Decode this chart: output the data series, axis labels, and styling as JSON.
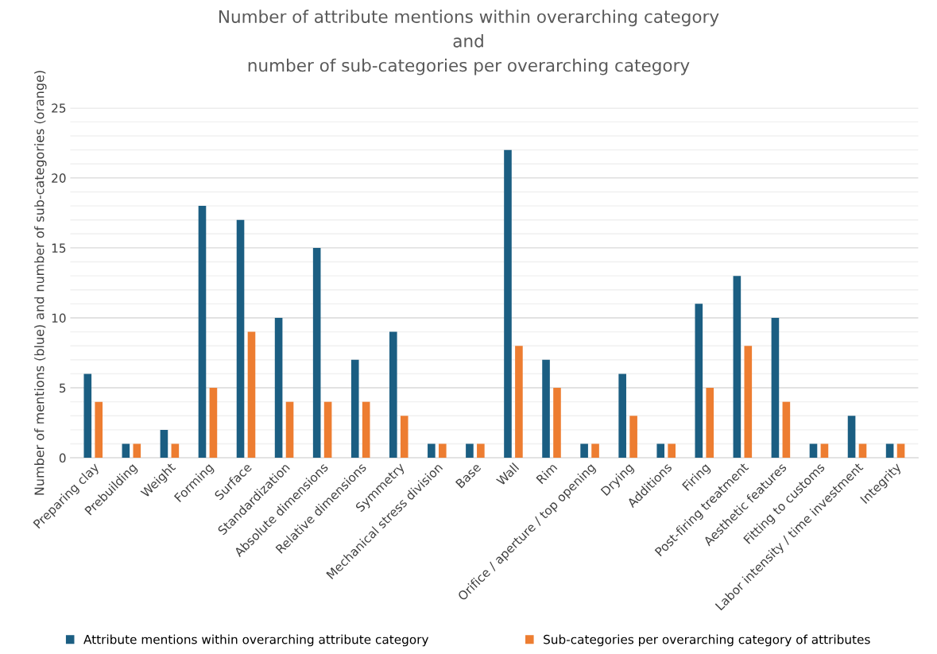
{
  "chart_data": {
    "type": "bar",
    "title": "Number of attribute mentions within overarching category\nand\nnumber of sub-categories per overarching category",
    "ylabel": "Number of mentions (blue) and number of sub-categories (orange)",
    "categories": [
      "Preparing clay",
      "Prebuilding",
      "Weight",
      "Forming",
      "Surface",
      "Standardization",
      "Absolute dimensions",
      "Relative dimensions",
      "Symmetry",
      "Mechanical stress division",
      "Base",
      "Wall",
      "Rim",
      "Orifice / aperture / top opening",
      "Drying",
      "Additions",
      "Firing",
      "Post-firing treatment",
      "Aesthetic features",
      "Fitting to customs",
      "Labor intensity / time investment",
      "Integrity"
    ],
    "series": [
      {
        "name": "Attribute mentions within overarching attribute category",
        "color": "#1b5e82",
        "values": [
          6,
          1,
          2,
          18,
          17,
          10,
          15,
          7,
          9,
          1,
          1,
          22,
          7,
          1,
          6,
          1,
          11,
          13,
          10,
          1,
          3,
          1
        ]
      },
      {
        "name": "Sub-categories per overarching category of attributes",
        "color": "#ed7d31",
        "values": [
          4,
          1,
          1,
          5,
          9,
          4,
          4,
          4,
          3,
          1,
          1,
          8,
          5,
          1,
          3,
          1,
          5,
          8,
          4,
          1,
          1,
          1
        ]
      }
    ],
    "ylim": [
      0,
      25
    ],
    "yticks": [
      0,
      {
        "value": 1,
        "label": null
      },
      {
        "value": 2,
        "label": null
      },
      {
        "value": 3,
        "label": null
      },
      {
        "value": 4,
        "label": null
      },
      5,
      {
        "value": 6,
        "label": null
      },
      {
        "value": 7,
        "label": null
      },
      {
        "value": 8,
        "label": null
      },
      {
        "value": 9,
        "label": null
      },
      10,
      {
        "value": 11,
        "label": null
      },
      {
        "value": 12,
        "label": null
      },
      {
        "value": 13,
        "label": null
      },
      {
        "value": 14,
        "label": null
      },
      15,
      {
        "value": 16,
        "label": null
      },
      {
        "value": 17,
        "label": null
      },
      {
        "value": 18,
        "label": null
      },
      {
        "value": 19,
        "label": null
      },
      20,
      {
        "value": 21,
        "label": null
      },
      {
        "value": 22,
        "label": null
      },
      {
        "value": 23,
        "label": null
      },
      {
        "value": 24,
        "label": null
      },
      25
    ],
    "grid": "y",
    "legend": "bottom"
  }
}
